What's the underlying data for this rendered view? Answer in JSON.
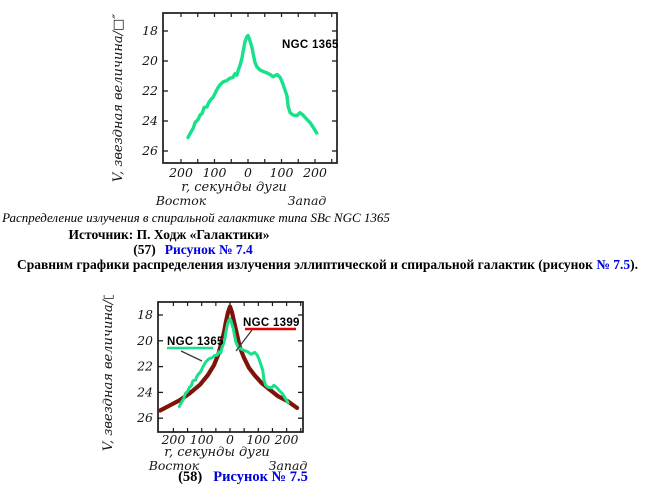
{
  "page": {
    "background": "#ffffff"
  },
  "colors": {
    "link_blue": "#0000e0",
    "green_curve": "#18e08b",
    "dark_red_curve": "#7e1308",
    "red_underline": "#e60000",
    "axis_black": "#1a1a1a",
    "pointer_gray": "#3a3a3a"
  },
  "captions": {
    "fig1_title": "Распределение излучения в спиральной галактике типа SBc NGC 1365",
    "fig1_source": "Источник: П. Ходж «Галактики»",
    "fig1_num": "(57)",
    "fig1_link": "Рисунок № 7.4",
    "compare_before": "Сравним графики распределения излучения эллиптической и спиральной галактик (рисунок",
    "compare_link": "№ 7.5",
    "compare_after": ").",
    "fig2_num": "(58)",
    "fig2_link": "Рисунок № 7.5"
  },
  "chart_data": [
    {
      "type": "line",
      "title": "",
      "ylabel": "V, звездная величина/□″",
      "xlabel": "r, секунды дуги",
      "direction_left": "Восток",
      "direction_right": "Запад",
      "grid": false,
      "xlim": [
        -260,
        255
      ],
      "ylim": [
        27,
        17
      ],
      "y_ticks": [
        18,
        20,
        22,
        24,
        26
      ],
      "x_tick_values": [
        -200,
        -100,
        0,
        100,
        200
      ],
      "x_tick_labels": [
        "200",
        "100",
        "0",
        "100",
        "200"
      ],
      "annotations": [
        {
          "text": "NGC 1365"
        }
      ],
      "series": [
        {
          "name": "NGC 1365",
          "color": "#18e08b",
          "width": 3.4,
          "points": [
            [
              -179,
              25.1
            ],
            [
              -172,
              24.8
            ],
            [
              -164,
              24.5
            ],
            [
              -158,
              24.1
            ],
            [
              -149,
              23.9
            ],
            [
              -143,
              23.6
            ],
            [
              -137,
              23.5
            ],
            [
              -131,
              23.1
            ],
            [
              -122,
              23.05
            ],
            [
              -118,
              22.8
            ],
            [
              -112,
              22.6
            ],
            [
              -104,
              22.4
            ],
            [
              -97,
              22.1
            ],
            [
              -90,
              21.8
            ],
            [
              -84,
              21.6
            ],
            [
              -75,
              21.4
            ],
            [
              -63,
              21.3
            ],
            [
              -54,
              21.15
            ],
            [
              -45,
              21.1
            ],
            [
              -39,
              20.85
            ],
            [
              -33,
              20.95
            ],
            [
              -29,
              20.6
            ],
            [
              -24,
              20.3
            ],
            [
              -18,
              19.8
            ],
            [
              -14,
              19.3
            ],
            [
              -9,
              18.7
            ],
            [
              -4,
              18.4
            ],
            [
              0,
              18.3
            ],
            [
              4,
              18.5
            ],
            [
              12,
              19.1
            ],
            [
              16,
              19.6
            ],
            [
              21,
              20.1
            ],
            [
              27,
              20.4
            ],
            [
              36,
              20.6
            ],
            [
              45,
              20.7
            ],
            [
              57,
              20.8
            ],
            [
              66,
              20.9
            ],
            [
              75,
              21.05
            ],
            [
              87,
              20.9
            ],
            [
              96,
              21.1
            ],
            [
              104,
              21.5
            ],
            [
              110,
              21.9
            ],
            [
              116,
              22.3
            ],
            [
              120,
              23.05
            ],
            [
              126,
              23.45
            ],
            [
              134,
              23.6
            ],
            [
              146,
              23.65
            ],
            [
              155,
              23.45
            ],
            [
              164,
              23.6
            ],
            [
              176,
              23.9
            ],
            [
              185,
              24.1
            ],
            [
              194,
              24.4
            ],
            [
              205,
              24.8
            ]
          ]
        }
      ]
    },
    {
      "type": "line",
      "title": "",
      "ylabel": "V, звездная величина/□″",
      "xlabel": "r, секунды дуги",
      "direction_left": "Восток",
      "direction_right": "Запад",
      "grid": false,
      "xlim": [
        -256,
        258
      ],
      "ylim": [
        27,
        17
      ],
      "y_ticks": [
        18,
        20,
        22,
        24,
        26
      ],
      "x_tick_values": [
        -200,
        -100,
        0,
        100,
        200
      ],
      "x_tick_labels": [
        "200",
        "100",
        "0",
        "100",
        "200"
      ],
      "annotations": [
        {
          "text": "NGC 1365",
          "underline_color": "#18e08b"
        },
        {
          "text": "NGC 1399",
          "underline_color": "#e60000"
        }
      ],
      "series": [
        {
          "name": "NGC 1399",
          "color": "#7e1308",
          "width": 4.2,
          "points": [
            [
              -247,
              25.4
            ],
            [
              -212,
              25.0
            ],
            [
              -177,
              24.6
            ],
            [
              -141,
              24.05
            ],
            [
              -106,
              23.4
            ],
            [
              -78,
              22.65
            ],
            [
              -57,
              21.9
            ],
            [
              -42,
              21.1
            ],
            [
              -32,
              20.3
            ],
            [
              -21,
              19.3
            ],
            [
              -14,
              18.5
            ],
            [
              -7,
              17.8
            ],
            [
              0,
              17.35
            ],
            [
              7,
              17.8
            ],
            [
              14,
              18.5
            ],
            [
              25,
              19.55
            ],
            [
              35,
              20.5
            ],
            [
              49,
              21.3
            ],
            [
              67,
              22.1
            ],
            [
              88,
              22.7
            ],
            [
              113,
              23.3
            ],
            [
              141,
              23.8
            ],
            [
              170,
              24.3
            ],
            [
              205,
              24.7
            ],
            [
              237,
              25.2
            ]
          ]
        },
        {
          "name": "NGC 1365",
          "color": "#18e08b",
          "width": 3.0,
          "points": [
            [
              -179,
              25.1
            ],
            [
              -172,
              24.8
            ],
            [
              -164,
              24.5
            ],
            [
              -158,
              24.1
            ],
            [
              -149,
              23.9
            ],
            [
              -143,
              23.6
            ],
            [
              -137,
              23.5
            ],
            [
              -131,
              23.1
            ],
            [
              -122,
              23.05
            ],
            [
              -118,
              22.8
            ],
            [
              -112,
              22.6
            ],
            [
              -104,
              22.4
            ],
            [
              -97,
              22.1
            ],
            [
              -90,
              21.8
            ],
            [
              -84,
              21.6
            ],
            [
              -75,
              21.4
            ],
            [
              -63,
              21.3
            ],
            [
              -54,
              21.15
            ],
            [
              -45,
              21.1
            ],
            [
              -39,
              20.85
            ],
            [
              -33,
              20.95
            ],
            [
              -29,
              20.6
            ],
            [
              -24,
              20.3
            ],
            [
              -18,
              19.8
            ],
            [
              -14,
              19.3
            ],
            [
              -9,
              18.7
            ],
            [
              -4,
              18.4
            ],
            [
              0,
              18.3
            ],
            [
              4,
              18.5
            ],
            [
              12,
              19.1
            ],
            [
              16,
              19.6
            ],
            [
              21,
              20.1
            ],
            [
              27,
              20.4
            ],
            [
              36,
              20.6
            ],
            [
              45,
              20.7
            ],
            [
              57,
              20.8
            ],
            [
              66,
              20.9
            ],
            [
              75,
              21.05
            ],
            [
              87,
              20.9
            ],
            [
              96,
              21.1
            ],
            [
              104,
              21.5
            ],
            [
              110,
              21.9
            ],
            [
              116,
              22.3
            ],
            [
              120,
              23.05
            ],
            [
              126,
              23.45
            ],
            [
              134,
              23.6
            ],
            [
              146,
              23.65
            ],
            [
              155,
              23.45
            ],
            [
              164,
              23.6
            ],
            [
              176,
              23.9
            ],
            [
              185,
              24.1
            ],
            [
              194,
              24.4
            ],
            [
              205,
              24.8
            ]
          ]
        }
      ]
    }
  ]
}
